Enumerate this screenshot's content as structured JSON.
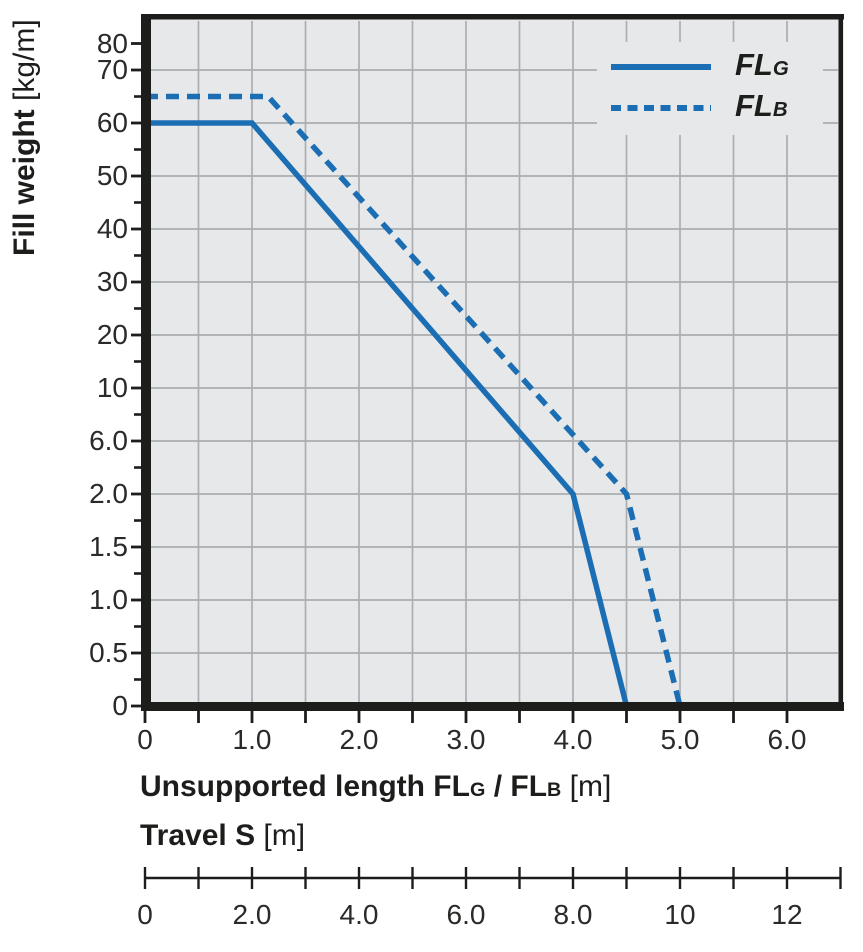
{
  "colors": {
    "line_blue": "#1b6eb3",
    "plot_bg": "#e7e8ea",
    "grid": "#abaeb1",
    "axis_black": "#1d1d1b",
    "page_bg": "#ffffff"
  },
  "y_axis": {
    "title_bold": "Fill weight",
    "title_unit": " [kg/m]",
    "tick_values": [
      0,
      0.5,
      1.0,
      1.5,
      2.0,
      6.0,
      10,
      20,
      30,
      40,
      50,
      60,
      70,
      80
    ],
    "tick_labels": [
      "0",
      "0.5",
      "1.0",
      "1.5",
      "2.0",
      "6.0",
      "10",
      "20",
      "30",
      "40",
      "50",
      "60",
      "70",
      "80"
    ],
    "tick_units": [
      0,
      1,
      2,
      3,
      4,
      5,
      6,
      7,
      8,
      9,
      10,
      11,
      12,
      12.5
    ]
  },
  "x_axis": {
    "title_parts": {
      "bold_main": "Unsupported length FL",
      "sub_g": "G",
      "bold_mid": " / FL",
      "sub_b": "B",
      "unit": " [m]"
    },
    "max": 6.5,
    "tick_step": 0.5,
    "labels": [
      {
        "v": 0,
        "t": "0"
      },
      {
        "v": 1.0,
        "t": "1.0"
      },
      {
        "v": 2.0,
        "t": "2.0"
      },
      {
        "v": 3.0,
        "t": "3.0"
      },
      {
        "v": 4.0,
        "t": "4.0"
      },
      {
        "v": 5.0,
        "t": "5.0"
      },
      {
        "v": 6.0,
        "t": "6.0"
      }
    ]
  },
  "travel_axis": {
    "title_bold": "Travel S",
    "title_unit": " [m]",
    "max": 13,
    "tick_step": 1,
    "labels": [
      {
        "v": 0,
        "t": "0"
      },
      {
        "v": 2,
        "t": "2.0"
      },
      {
        "v": 4,
        "t": "4.0"
      },
      {
        "v": 6,
        "t": "6.0"
      },
      {
        "v": 8,
        "t": "8.0"
      },
      {
        "v": 10,
        "t": "10"
      },
      {
        "v": 12,
        "t": "12"
      }
    ]
  },
  "legend": {
    "entries": [
      {
        "label": "FL",
        "sub": "G",
        "style": "solid"
      },
      {
        "label": "FL",
        "sub": "B",
        "style": "dashed"
      }
    ]
  },
  "chart_data": {
    "type": "line",
    "title": "",
    "xlabel": "Unsupported length FLG / FLB [m]",
    "ylabel": "Fill weight [kg/m]",
    "x_range": [
      0,
      6.5
    ],
    "y_scale": "segmented-ordinal, equal spacing between listed ticks (70-80 half interval)",
    "y_ticks": [
      0,
      0.5,
      1.0,
      1.5,
      2.0,
      6.0,
      10,
      20,
      30,
      40,
      50,
      60,
      70,
      80
    ],
    "grid": "on, x every 0.5 m, y at each listed tick",
    "legend_position": "top-right inside plot",
    "series": [
      {
        "name": "FLG",
        "style": "solid",
        "color": "#1b6eb3",
        "points": [
          [
            0,
            60
          ],
          [
            1.0,
            60
          ],
          [
            4.0,
            2.0
          ],
          [
            4.5,
            0
          ]
        ]
      },
      {
        "name": "FLB",
        "style": "dashed",
        "color": "#1b6eb3",
        "points": [
          [
            0,
            65
          ],
          [
            1.15,
            65
          ],
          [
            4.5,
            2.0
          ],
          [
            5.0,
            0
          ]
        ]
      }
    ],
    "secondary_x_axis": {
      "label": "Travel S [m]",
      "range": [
        0,
        13
      ],
      "labeled_ticks": [
        0,
        2,
        4,
        6,
        8,
        10,
        12
      ],
      "tick_step": 1
    }
  }
}
